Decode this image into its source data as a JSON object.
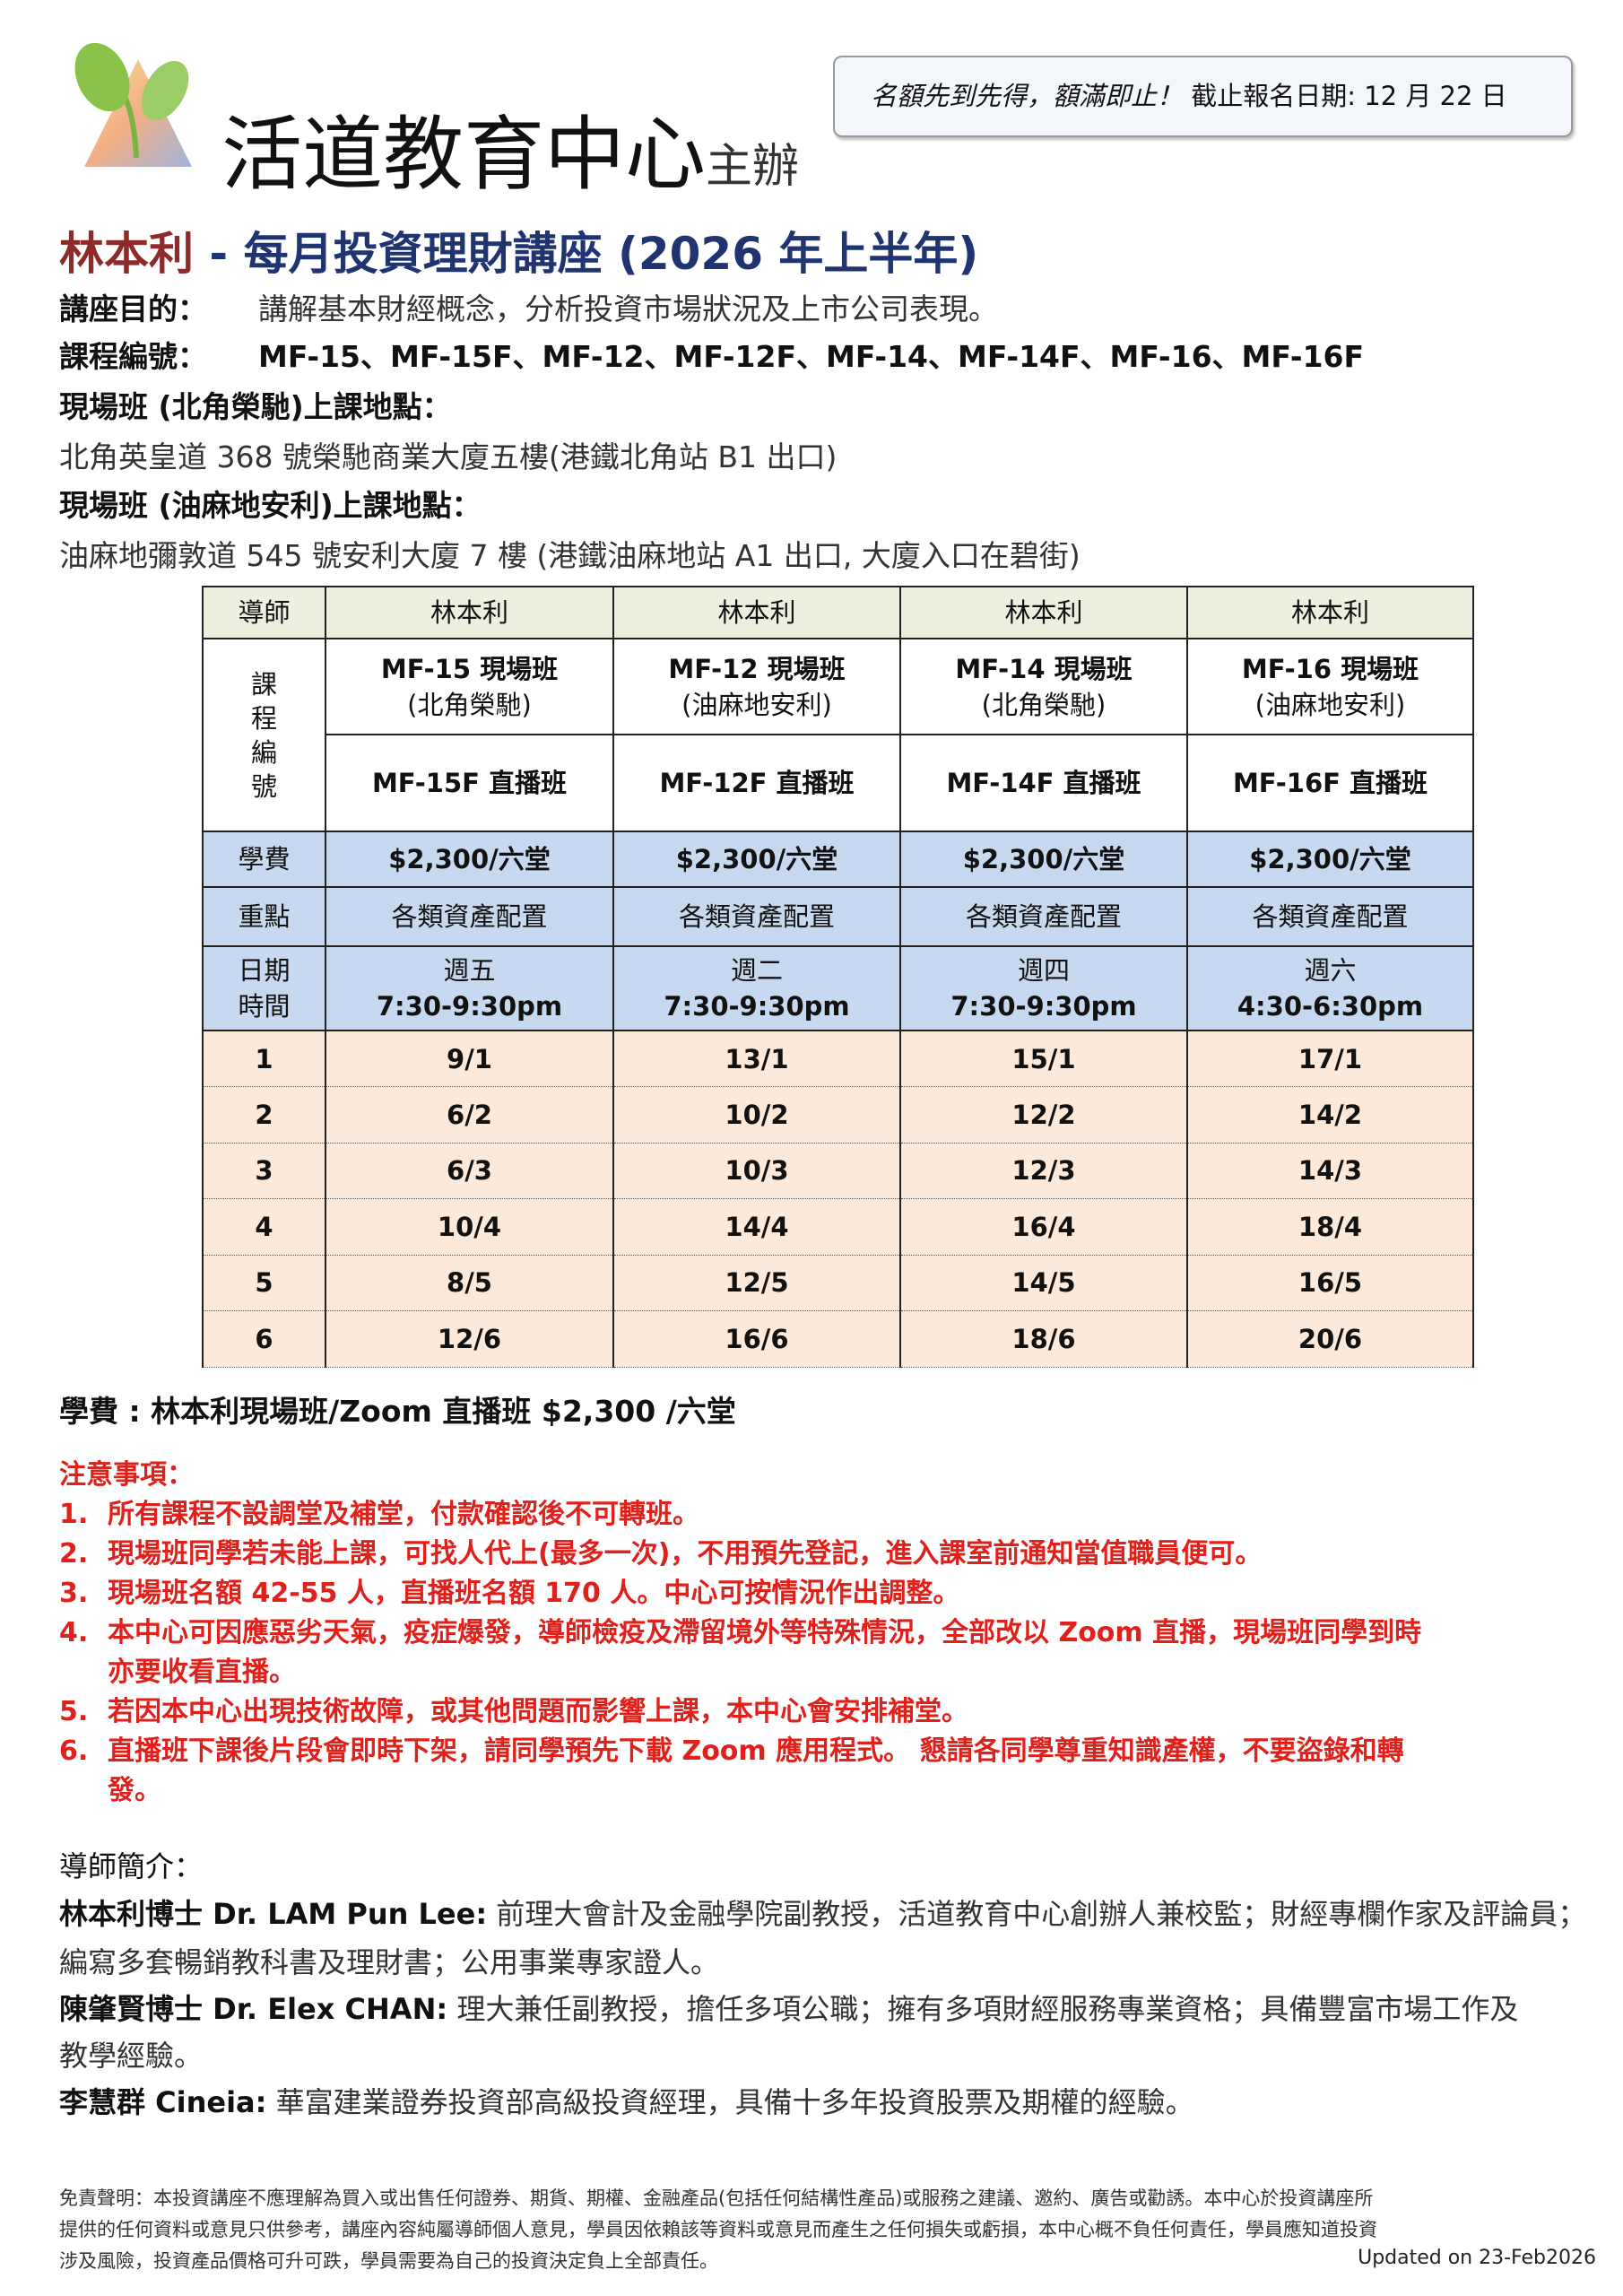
{
  "header": {
    "organizer": "活道教育中心",
    "organizer_suffix": "主辦",
    "notice_italic": "名額先到先得，額滿即止！",
    "notice_deadline": "截止報名日期: 12 月 22 日"
  },
  "title": {
    "speaker": "林本利",
    "dash": " - ",
    "course": "每月投資理財講座 (2026 年上半年)"
  },
  "info": {
    "purpose_label": "講座目的：",
    "purpose": "講解基本財經概念，分析投資市場狀況及上市公司表現。",
    "codes_label": "課程編號：",
    "codes": "MF-15、MF-15F、MF-12、MF-12F、MF-14、MF-14F、MF-16、MF-16F",
    "venue1_label": "現場班 (北角榮馳)上課地點：",
    "venue1": "北角英皇道 368 號榮馳商業大廈五樓(港鐵北角站 B1 出口)",
    "venue2_label": "現場班 (油麻地安利)上課地點：",
    "venue2": "油麻地彌敦道 545 號安利大廈 7 樓 (港鐵油麻地站 A1 出口, 大廈入口在碧街)"
  },
  "table": {
    "tutor_label": "導師",
    "tutors": [
      "林本利",
      "林本利",
      "林本利",
      "林本利"
    ],
    "code_label": "課\n程\n編\n號",
    "onsite": [
      [
        "MF-15 現場班",
        "(北角榮馳)"
      ],
      [
        "MF-12 現場班",
        "(油麻地安利)"
      ],
      [
        "MF-14 現場班",
        "(北角榮馳)"
      ],
      [
        "MF-16 現場班",
        "(油麻地安利)"
      ]
    ],
    "live": [
      "MF-15F 直播班",
      "MF-12F 直播班",
      "MF-14F 直播班",
      "MF-16F 直播班"
    ],
    "fee_label": "學費",
    "fees": [
      "$2,300/六堂",
      "$2,300/六堂",
      "$2,300/六堂",
      "$2,300/六堂"
    ],
    "focus_label": "重點",
    "focus": [
      "各類資產配置",
      "各類資產配置",
      "各類資產配置",
      "各類資產配置"
    ],
    "datetime_label": [
      "日期",
      "時間"
    ],
    "days": [
      "週五",
      "週二",
      "週四",
      "週六"
    ],
    "times": [
      "7:30-9:30pm",
      "7:30-9:30pm",
      "7:30-9:30pm",
      "4:30-6:30pm"
    ],
    "sessions": [
      [
        "1",
        "9/1",
        "13/1",
        "15/1",
        "17/1"
      ],
      [
        "2",
        "6/2",
        "10/2",
        "12/2",
        "14/2"
      ],
      [
        "3",
        "6/3",
        "10/3",
        "12/3",
        "14/3"
      ],
      [
        "4",
        "10/4",
        "14/4",
        "16/4",
        "18/4"
      ],
      [
        "5",
        "8/5",
        "12/5",
        "14/5",
        "16/5"
      ],
      [
        "6",
        "12/6",
        "16/6",
        "18/6",
        "20/6"
      ]
    ]
  },
  "fee_line": "學費 : 林本利現場班/Zoom 直播班 $2,300 /六堂",
  "notes": {
    "title": "注意事項：",
    "items": [
      [
        "1.",
        "所有課程不設調堂及補堂，付款確認後不可轉班。"
      ],
      [
        "2.",
        "現場班同學若未能上課，可找人代上(最多一次)，不用預先登記，進入課室前通知當值職員便可。"
      ],
      [
        "3.",
        "現場班名額 42-55 人，直播班名額 170 人。中心可按情況作出調整。"
      ],
      [
        "4.",
        "本中心可因應惡劣天氣，疫症爆發，導師檢疫及滯留境外等特殊情況，全部改以 Zoom 直播，現場班同學到時"
      ],
      [
        "",
        "亦要收看直播。"
      ],
      [
        "5.",
        "若因本中心出現技術故障，或其他問題而影響上課，本中心會安排補堂。"
      ],
      [
        "6.",
        "直播班下課後片段會即時下架，請同學預先下載 Zoom 應用程式。 懇請各同學尊重知識產權，不要盜錄和轉"
      ],
      [
        "",
        "發。"
      ]
    ]
  },
  "tutors": {
    "title": "導師簡介：",
    "lines": [
      [
        "林本利博士 Dr. LAM Pun Lee:",
        "前理大會計及金融學院副教授，活道教育中心創辦人兼校監；財經專欄作家及評論員；"
      ],
      [
        "",
        "編寫多套暢銷教科書及理財書；公用事業專家證人。"
      ],
      [
        "陳肇賢博士 Dr. Elex CHAN:",
        "理大兼任副教授，擔任多項公職；擁有多項財經服務專業資格；具備豐富市場工作及"
      ],
      [
        "",
        "教學經驗。"
      ],
      [
        "李慧群 Cineia:",
        "華富建業證券投資部高級投資經理，具備十多年投資股票及期權的經驗。"
      ]
    ]
  },
  "disclaimer": [
    "免責聲明：本投資講座不應理解為買入或出售任何證券、期貨、期權、金融產品(包括任何結構性產品)或服務之建議、邀約、廣告或勸誘。本中心於投資講座所",
    "提供的任何資料或意見只供參考，講座內容純屬導師個人意見，學員因依賴該等資料或意見而產生之任何損失或虧損，本中心概不負任何責任，學員應知道投資",
    "涉及風險，投資產品價格可升可跌，學員需要為自己的投資決定負上全部責任。"
  ],
  "updated": "Updated on 23-Feb2026",
  "colors": {
    "speaker": "#8e2a2a",
    "course": "#1f3470",
    "notes": "#e0201b",
    "tutor_row": "#ebf1de",
    "info_rows": "#c6d9f0",
    "session_rows": "#fde9d9"
  }
}
